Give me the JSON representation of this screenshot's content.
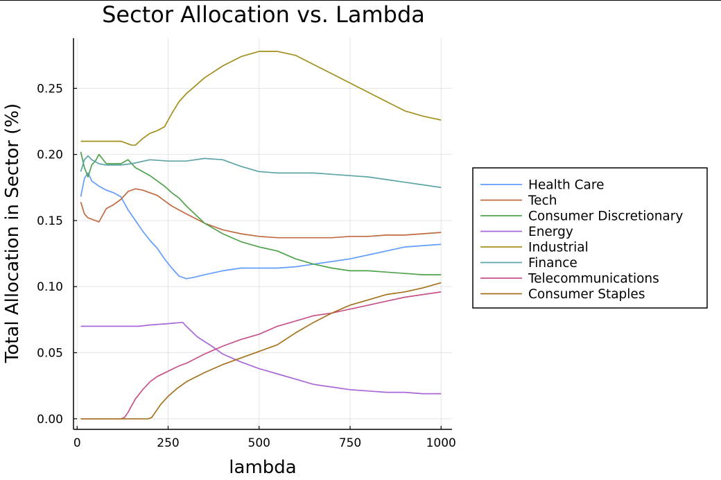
{
  "chart_data": {
    "type": "line",
    "title": "Sector Allocation vs. Lambda",
    "xlabel": "lambda",
    "ylabel": "Total Allocation in Sector (%)",
    "xlim": [
      -10,
      1030
    ],
    "ylim": [
      -0.008,
      0.288
    ],
    "xticks": [
      0,
      250,
      500,
      750,
      1000
    ],
    "xtick_labels": [
      "0",
      "250",
      "500",
      "750",
      "1000"
    ],
    "yticks": [
      0.0,
      0.05,
      0.1,
      0.15,
      0.2,
      0.25
    ],
    "ytick_labels": [
      "0.00",
      "0.05",
      "0.10",
      "0.15",
      "0.20",
      "0.25"
    ],
    "grid": true,
    "legend_position": "outside-right",
    "series": [
      {
        "name": "Health Care",
        "color": "#619cff",
        "x": [
          10,
          20,
          30,
          40,
          60,
          80,
          100,
          120,
          140,
          160,
          180,
          200,
          220,
          240,
          260,
          280,
          300,
          320,
          350,
          400,
          450,
          500,
          550,
          600,
          650,
          700,
          750,
          800,
          850,
          900,
          950,
          1000
        ],
        "y": [
          0.168,
          0.182,
          0.186,
          0.18,
          0.176,
          0.173,
          0.171,
          0.168,
          0.158,
          0.15,
          0.142,
          0.135,
          0.129,
          0.121,
          0.114,
          0.108,
          0.106,
          0.107,
          0.109,
          0.112,
          0.114,
          0.114,
          0.114,
          0.115,
          0.117,
          0.119,
          0.121,
          0.124,
          0.127,
          0.13,
          0.131,
          0.132
        ]
      },
      {
        "name": "Tech",
        "color": "#c1693e",
        "x": [
          10,
          20,
          30,
          40,
          60,
          80,
          100,
          120,
          140,
          160,
          180,
          200,
          220,
          240,
          260,
          280,
          300,
          350,
          400,
          450,
          500,
          550,
          600,
          650,
          700,
          750,
          800,
          850,
          900,
          950,
          1000
        ],
        "y": [
          0.164,
          0.155,
          0.152,
          0.151,
          0.149,
          0.159,
          0.162,
          0.166,
          0.172,
          0.174,
          0.173,
          0.171,
          0.169,
          0.165,
          0.161,
          0.158,
          0.155,
          0.148,
          0.143,
          0.14,
          0.138,
          0.137,
          0.137,
          0.137,
          0.137,
          0.138,
          0.138,
          0.139,
          0.139,
          0.14,
          0.141
        ]
      },
      {
        "name": "Consumer Discretionary",
        "color": "#4ea24b",
        "x": [
          10,
          20,
          30,
          40,
          50,
          60,
          80,
          100,
          120,
          140,
          160,
          180,
          200,
          220,
          240,
          260,
          280,
          300,
          350,
          400,
          450,
          500,
          550,
          600,
          650,
          700,
          750,
          800,
          850,
          900,
          950,
          1000
        ],
        "y": [
          0.202,
          0.19,
          0.183,
          0.192,
          0.195,
          0.2,
          0.193,
          0.193,
          0.193,
          0.196,
          0.19,
          0.187,
          0.184,
          0.18,
          0.176,
          0.171,
          0.167,
          0.161,
          0.148,
          0.14,
          0.134,
          0.13,
          0.127,
          0.121,
          0.117,
          0.114,
          0.112,
          0.112,
          0.111,
          0.11,
          0.109,
          0.109
        ]
      },
      {
        "name": "Energy",
        "color": "#a867d8",
        "x": [
          10,
          50,
          100,
          150,
          170,
          200,
          250,
          290,
          300,
          330,
          370,
          400,
          450,
          500,
          550,
          600,
          650,
          700,
          750,
          800,
          850,
          900,
          950,
          1000
        ],
        "y": [
          0.07,
          0.07,
          0.07,
          0.07,
          0.07,
          0.071,
          0.072,
          0.073,
          0.07,
          0.062,
          0.055,
          0.049,
          0.043,
          0.038,
          0.034,
          0.03,
          0.026,
          0.024,
          0.022,
          0.021,
          0.02,
          0.02,
          0.019,
          0.019
        ]
      },
      {
        "name": "Industrial",
        "color": "#a28e1d",
        "x": [
          10,
          30,
          60,
          80,
          100,
          120,
          140,
          150,
          160,
          180,
          200,
          220,
          240,
          260,
          280,
          300,
          350,
          400,
          450,
          500,
          550,
          600,
          650,
          700,
          750,
          800,
          850,
          900,
          950,
          1000
        ],
        "y": [
          0.21,
          0.21,
          0.21,
          0.21,
          0.21,
          0.21,
          0.208,
          0.207,
          0.207,
          0.212,
          0.216,
          0.218,
          0.221,
          0.231,
          0.24,
          0.246,
          0.258,
          0.267,
          0.274,
          0.278,
          0.278,
          0.275,
          0.268,
          0.261,
          0.254,
          0.247,
          0.24,
          0.233,
          0.229,
          0.226
        ]
      },
      {
        "name": "Finance",
        "color": "#5ca4a5",
        "x": [
          10,
          20,
          30,
          40,
          60,
          80,
          100,
          120,
          150,
          200,
          250,
          300,
          350,
          400,
          450,
          500,
          550,
          600,
          650,
          700,
          750,
          800,
          850,
          900,
          950,
          1000
        ],
        "y": [
          0.187,
          0.196,
          0.199,
          0.196,
          0.193,
          0.192,
          0.192,
          0.192,
          0.193,
          0.196,
          0.195,
          0.195,
          0.197,
          0.196,
          0.191,
          0.187,
          0.186,
          0.186,
          0.186,
          0.185,
          0.184,
          0.183,
          0.181,
          0.179,
          0.177,
          0.175
        ]
      },
      {
        "name": "Telecommunications",
        "color": "#c75189",
        "x": [
          10,
          50,
          100,
          120,
          130,
          140,
          150,
          160,
          180,
          200,
          220,
          250,
          280,
          300,
          350,
          400,
          450,
          500,
          550,
          600,
          650,
          700,
          750,
          800,
          850,
          900,
          950,
          1000
        ],
        "y": [
          0.0,
          0.0,
          0.0,
          0.0,
          0.001,
          0.005,
          0.01,
          0.015,
          0.022,
          0.028,
          0.032,
          0.036,
          0.04,
          0.042,
          0.049,
          0.055,
          0.06,
          0.064,
          0.07,
          0.074,
          0.078,
          0.08,
          0.083,
          0.086,
          0.089,
          0.092,
          0.094,
          0.096
        ]
      },
      {
        "name": "Consumer Staples",
        "color": "#a6701b",
        "x": [
          10,
          50,
          100,
          150,
          195,
          205,
          215,
          230,
          250,
          275,
          300,
          350,
          400,
          450,
          500,
          550,
          600,
          650,
          700,
          750,
          800,
          850,
          900,
          950,
          1000
        ],
        "y": [
          0.0,
          0.0,
          0.0,
          0.0,
          0.0,
          0.001,
          0.005,
          0.011,
          0.017,
          0.023,
          0.028,
          0.035,
          0.041,
          0.046,
          0.051,
          0.056,
          0.065,
          0.073,
          0.08,
          0.086,
          0.09,
          0.094,
          0.096,
          0.099,
          0.103
        ]
      }
    ]
  }
}
